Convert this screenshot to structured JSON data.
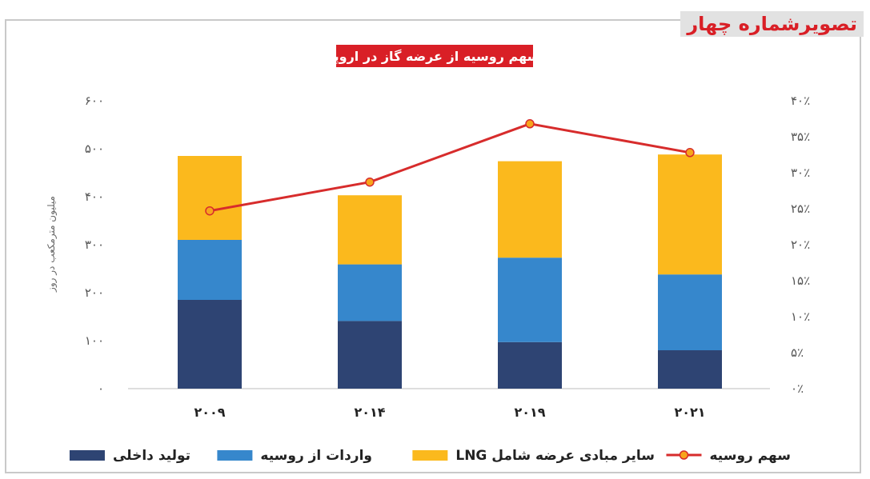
{
  "badge": "تصویرشماره چهار",
  "chart_data": {
    "type": "bar",
    "title": "سهم روسیه از عرضه گاز در اروپا",
    "ylabel": "میلیون مترمکعب در روز",
    "ylim": [
      0,
      600
    ],
    "y2lim": [
      0,
      40
    ],
    "yticks": [
      "۰",
      "۱۰۰",
      "۲۰۰",
      "۳۰۰",
      "۴۰۰",
      "۵۰۰",
      "۶۰۰"
    ],
    "y2ticks": [
      "۰٪",
      "۵٪",
      "۱۰٪",
      "۱۵٪",
      "۲۰٪",
      "۲۵٪",
      "۳۰٪",
      "۳۵٪",
      "۴۰٪"
    ],
    "categories": [
      "۲۰۰۹",
      "۲۰۱۴",
      "۲۰۱۹",
      "۲۰۲۱"
    ],
    "series": [
      {
        "name": "تولید داخلی",
        "color": "#2e4473",
        "values": [
          185,
          141,
          97,
          80
        ]
      },
      {
        "name": "واردات از روسیه",
        "color": "#3687cc",
        "values": [
          125,
          118,
          176,
          158
        ]
      },
      {
        "name": "سایر مبادی عرضه شامل LNG",
        "color": "#fbb91d",
        "values": [
          175,
          144,
          201,
          250
        ]
      }
    ],
    "line": {
      "name": "سهم روسیه",
      "color": "#d72c2c",
      "marker_color": "#f7a51c",
      "values": [
        24.7,
        28.7,
        36.8,
        32.8
      ]
    },
    "legend_position": "bottom",
    "grid": false
  }
}
